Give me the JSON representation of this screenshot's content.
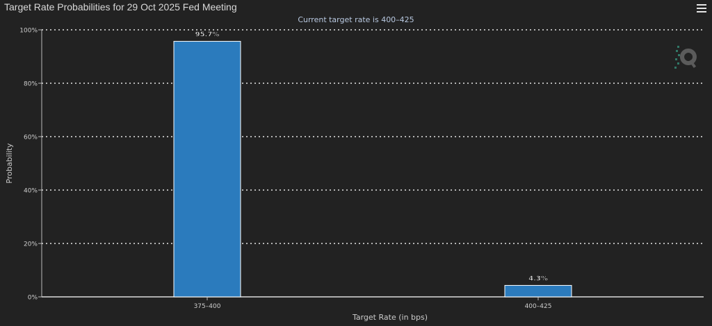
{
  "title": "Target Rate Probabilities for 29 Oct 2025 Fed Meeting",
  "subtitle": "Current target rate is 400–425",
  "menu_icon": "hamburger-menu-icon",
  "colors": {
    "background": "#222222",
    "bar": "#2b7bbd",
    "grid": "#e8e8e8",
    "text": "#cccccc"
  },
  "chart_data": {
    "type": "bar",
    "categories": [
      "375–400",
      "400–425"
    ],
    "values": [
      95.7,
      4.3
    ],
    "data_labels": [
      "95.7%",
      "4.3%"
    ],
    "xlabel": "Target Rate (in bps)",
    "ylabel": "Probability",
    "ylim": [
      0,
      100
    ],
    "yticks": [
      0,
      20,
      40,
      60,
      80,
      100
    ],
    "ytick_labels": [
      "0%",
      "20%",
      "40%",
      "60%",
      "80%",
      "100%"
    ],
    "grid": true
  }
}
